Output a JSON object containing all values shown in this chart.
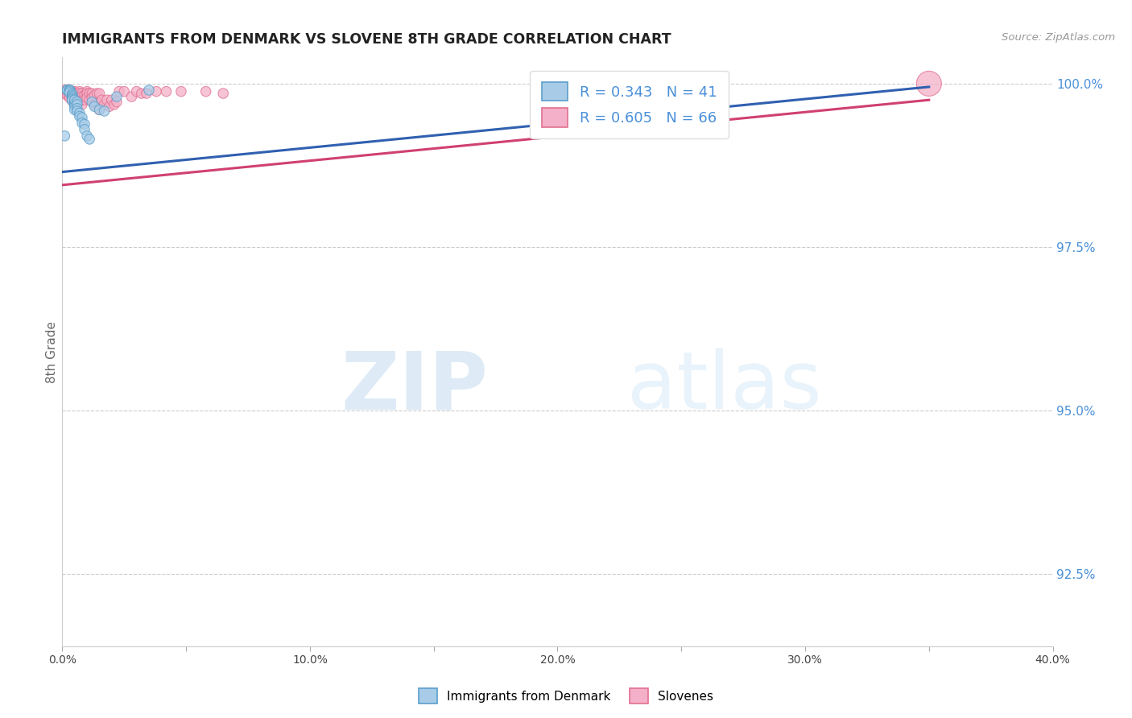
{
  "title": "IMMIGRANTS FROM DENMARK VS SLOVENE 8TH GRADE CORRELATION CHART",
  "source_text": "Source: ZipAtlas.com",
  "ylabel": "8th Grade",
  "xlim": [
    0.0,
    0.4
  ],
  "ylim": [
    0.914,
    1.004
  ],
  "xticks": [
    0.0,
    0.05,
    0.1,
    0.15,
    0.2,
    0.25,
    0.3,
    0.35,
    0.4
  ],
  "xticklabels": [
    "0.0%",
    "",
    "10.0%",
    "",
    "20.0%",
    "",
    "30.0%",
    "",
    "40.0%"
  ],
  "yticks_right": [
    1.0,
    0.975,
    0.95,
    0.925
  ],
  "yticklabels_right": [
    "100.0%",
    "97.5%",
    "95.0%",
    "92.5%"
  ],
  "blue_color": "#a8cce8",
  "pink_color": "#f4b0c8",
  "blue_edge": "#5b9ec9",
  "pink_edge": "#e07090",
  "trendline_blue": "#3060b0",
  "trendline_pink": "#d04070",
  "R_blue": 0.343,
  "N_blue": 41,
  "R_pink": 0.605,
  "N_pink": 66,
  "legend_label_blue": "Immigrants from Denmark",
  "legend_label_pink": "Slovenes",
  "watermark_zip": "ZIP",
  "watermark_atlas": "atlas",
  "background_color": "#ffffff",
  "grid_color": "#cccccc",
  "title_color": "#222222",
  "axis_label_color": "#666666",
  "right_tick_color": "#4a90d9",
  "blue_scatter_x": [
    0.001,
    0.002,
    0.002,
    0.002,
    0.003,
    0.003,
    0.003,
    0.003,
    0.003,
    0.003,
    0.003,
    0.004,
    0.004,
    0.004,
    0.004,
    0.004,
    0.004,
    0.005,
    0.005,
    0.005,
    0.005,
    0.005,
    0.005,
    0.006,
    0.006,
    0.006,
    0.006,
    0.007,
    0.007,
    0.008,
    0.008,
    0.009,
    0.009,
    0.01,
    0.011,
    0.012,
    0.013,
    0.015,
    0.017,
    0.022,
    0.035
  ],
  "blue_scatter_y": [
    0.992,
    0.999,
    0.999,
    0.999,
    0.999,
    0.999,
    0.999,
    0.999,
    0.999,
    0.9988,
    0.9986,
    0.9984,
    0.9982,
    0.998,
    0.9978,
    0.9976,
    0.9974,
    0.9972,
    0.997,
    0.9968,
    0.9965,
    0.996,
    0.9975,
    0.9972,
    0.9968,
    0.9962,
    0.9958,
    0.9955,
    0.995,
    0.9948,
    0.994,
    0.9938,
    0.993,
    0.992,
    0.9915,
    0.9972,
    0.9965,
    0.996,
    0.9958,
    0.998,
    0.999
  ],
  "blue_scatter_sizes": [
    80,
    80,
    80,
    80,
    80,
    80,
    80,
    80,
    80,
    80,
    80,
    80,
    80,
    80,
    80,
    80,
    80,
    80,
    80,
    80,
    80,
    80,
    80,
    80,
    80,
    80,
    80,
    80,
    80,
    80,
    80,
    80,
    80,
    80,
    80,
    80,
    80,
    80,
    80,
    80,
    80
  ],
  "pink_scatter_x": [
    0.001,
    0.001,
    0.001,
    0.002,
    0.002,
    0.002,
    0.002,
    0.003,
    0.003,
    0.003,
    0.003,
    0.003,
    0.004,
    0.004,
    0.004,
    0.004,
    0.004,
    0.005,
    0.005,
    0.005,
    0.005,
    0.006,
    0.006,
    0.006,
    0.007,
    0.007,
    0.007,
    0.007,
    0.008,
    0.008,
    0.008,
    0.008,
    0.009,
    0.009,
    0.01,
    0.01,
    0.01,
    0.011,
    0.011,
    0.012,
    0.012,
    0.013,
    0.013,
    0.014,
    0.014,
    0.015,
    0.015,
    0.016,
    0.017,
    0.018,
    0.019,
    0.02,
    0.021,
    0.022,
    0.023,
    0.025,
    0.028,
    0.03,
    0.032,
    0.034,
    0.038,
    0.042,
    0.048,
    0.058,
    0.065,
    0.35
  ],
  "pink_scatter_y": [
    0.999,
    0.9988,
    0.9985,
    0.999,
    0.9988,
    0.9985,
    0.9982,
    0.999,
    0.9988,
    0.9985,
    0.9982,
    0.9978,
    0.9988,
    0.9984,
    0.9982,
    0.9978,
    0.9974,
    0.9988,
    0.9985,
    0.998,
    0.9975,
    0.9985,
    0.998,
    0.9975,
    0.9988,
    0.9985,
    0.998,
    0.9972,
    0.9985,
    0.998,
    0.9975,
    0.9968,
    0.9982,
    0.9975,
    0.9988,
    0.9985,
    0.9978,
    0.9985,
    0.9975,
    0.9985,
    0.9978,
    0.9982,
    0.9968,
    0.9985,
    0.997,
    0.9985,
    0.996,
    0.9975,
    0.9968,
    0.9975,
    0.9965,
    0.9975,
    0.9968,
    0.9972,
    0.9988,
    0.9988,
    0.998,
    0.9988,
    0.9985,
    0.9985,
    0.9988,
    0.9988,
    0.9988,
    0.9988,
    0.9985,
    1.0
  ],
  "pink_scatter_sizes": [
    80,
    80,
    80,
    80,
    80,
    80,
    80,
    80,
    80,
    80,
    80,
    80,
    80,
    80,
    80,
    80,
    80,
    80,
    80,
    80,
    80,
    80,
    80,
    80,
    80,
    80,
    80,
    80,
    80,
    80,
    80,
    80,
    80,
    80,
    80,
    80,
    80,
    80,
    80,
    80,
    80,
    80,
    80,
    80,
    80,
    80,
    80,
    80,
    80,
    80,
    80,
    80,
    80,
    80,
    80,
    80,
    80,
    80,
    80,
    80,
    80,
    80,
    80,
    80,
    80,
    500
  ]
}
